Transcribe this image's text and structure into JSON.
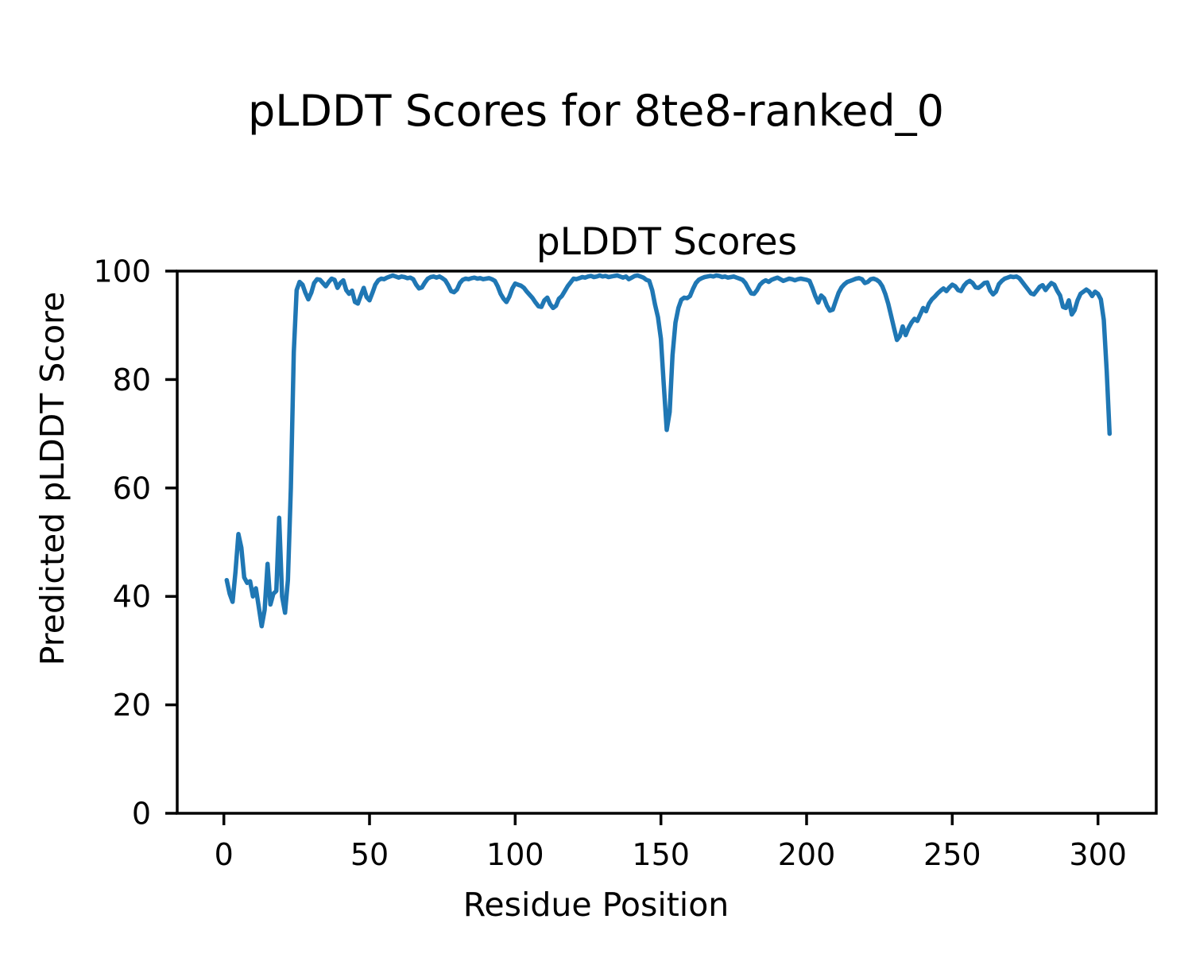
{
  "figure": {
    "suptitle": "pLDDT Scores for 8te8-ranked_0"
  },
  "colors": {
    "line": "#1f77b4",
    "text": "#000000",
    "background": "#ffffff",
    "spine": "#000000"
  },
  "chart_data": {
    "type": "line",
    "title": "pLDDT Scores",
    "xlabel": "Residue Position",
    "ylabel": "Predicted pLDDT Score",
    "grid": false,
    "legend": null,
    "line_color": "#1f77b4",
    "xlim": [
      -16,
      320
    ],
    "ylim": [
      0,
      100
    ],
    "xticks": [
      0,
      50,
      100,
      150,
      200,
      250,
      300
    ],
    "yticks": [
      0,
      20,
      40,
      60,
      80,
      100
    ],
    "x_start": 1,
    "series": [
      {
        "name": "pLDDT",
        "values": [
          43,
          40.5,
          39,
          44.5,
          51.5,
          49,
          43.5,
          42.5,
          42.8,
          40,
          41.5,
          38,
          34.5,
          37.5,
          46,
          38.5,
          40.5,
          41,
          54.5,
          40,
          37,
          43,
          60,
          85,
          96.5,
          98,
          97.5,
          96,
          94.8,
          96,
          97.8,
          98.5,
          98.4,
          97.8,
          97.2,
          98,
          98.6,
          98.4,
          96.9,
          97.8,
          98.3,
          96.5,
          95.8,
          96.4,
          94.3,
          94,
          95.5,
          96.9,
          95.2,
          94.6,
          96,
          97.5,
          98.3,
          98.6,
          98.5,
          98.8,
          99,
          99.2,
          99,
          98.8,
          99,
          98.9,
          98.7,
          98.8,
          98.5,
          97.5,
          96.8,
          97,
          97.9,
          98.6,
          98.9,
          99,
          98.8,
          99,
          98.7,
          98.3,
          97.4,
          96.3,
          96.1,
          96.6,
          97.8,
          98.4,
          98.6,
          98.5,
          98.7,
          98.8,
          98.6,
          98.7,
          98.5,
          98.6,
          98.7,
          98.5,
          98.2,
          97.2,
          95.8,
          94.9,
          94.3,
          95.3,
          96.8,
          97.7,
          97.5,
          97.3,
          96.9,
          96.2,
          95.6,
          95,
          94.2,
          93.5,
          93.4,
          94.6,
          95.1,
          93.9,
          93.2,
          93.6,
          94.9,
          95.4,
          96.3,
          97.2,
          97.9,
          98.6,
          98.5,
          98.7,
          98.9,
          98.8,
          99,
          99.1,
          98.9,
          99,
          99.2,
          99,
          99.1,
          98.9,
          99,
          99.1,
          99.2,
          99,
          98.8,
          99,
          98.5,
          98.8,
          99.1,
          99.2,
          99,
          98.8,
          98.4,
          98.2,
          96.5,
          93.8,
          91.5,
          87.5,
          79,
          70.7,
          74,
          84.5,
          90.5,
          93.2,
          94.7,
          95.1,
          95,
          95.4,
          96.7,
          97.8,
          98.4,
          98.7,
          98.9,
          99,
          99.1,
          99,
          99.2,
          99.1,
          98.9,
          99,
          98.8,
          98.9,
          99,
          98.8,
          98.6,
          98.4,
          97.8,
          96.8,
          95.9,
          95.8,
          96.5,
          97.5,
          98,
          98.3,
          98,
          98.4,
          98.6,
          98.8,
          98.5,
          98.2,
          98.4,
          98.6,
          98.5,
          98.3,
          98.5,
          98.6,
          98.5,
          98.4,
          98.2,
          96.9,
          95.4,
          94.2,
          95.5,
          95,
          93.6,
          92.7,
          92.9,
          94.5,
          96,
          97,
          97.6,
          98,
          98.2,
          98.4,
          98.6,
          98.7,
          98.5,
          97.8,
          98,
          98.5,
          98.6,
          98.4,
          98,
          97.2,
          95.8,
          94,
          91.8,
          89.5,
          87.3,
          88,
          89.8,
          88.2,
          89.5,
          90.5,
          91.2,
          90.8,
          92,
          93.2,
          92.6,
          94,
          94.8,
          95.3,
          95.9,
          96.4,
          96.8,
          96.3,
          97,
          97.5,
          97.2,
          96.5,
          96.3,
          97.3,
          97.9,
          98.2,
          97.8,
          97,
          96.9,
          97.3,
          97.8,
          97.9,
          96.4,
          95.7,
          96.2,
          97.6,
          98.2,
          98.6,
          98.8,
          99,
          98.9,
          99,
          98.7,
          98,
          97.3,
          96.6,
          95.9,
          95.7,
          96.4,
          97.1,
          97.4,
          96.5,
          97.2,
          97.8,
          97.5,
          96.4,
          95.5,
          93.4,
          93.2,
          94.6,
          92,
          92.8,
          94.6,
          95.8,
          96.2,
          96.6,
          96.2,
          95.4,
          96.2,
          95.8,
          94.8,
          91,
          81.5,
          70
        ]
      }
    ]
  }
}
